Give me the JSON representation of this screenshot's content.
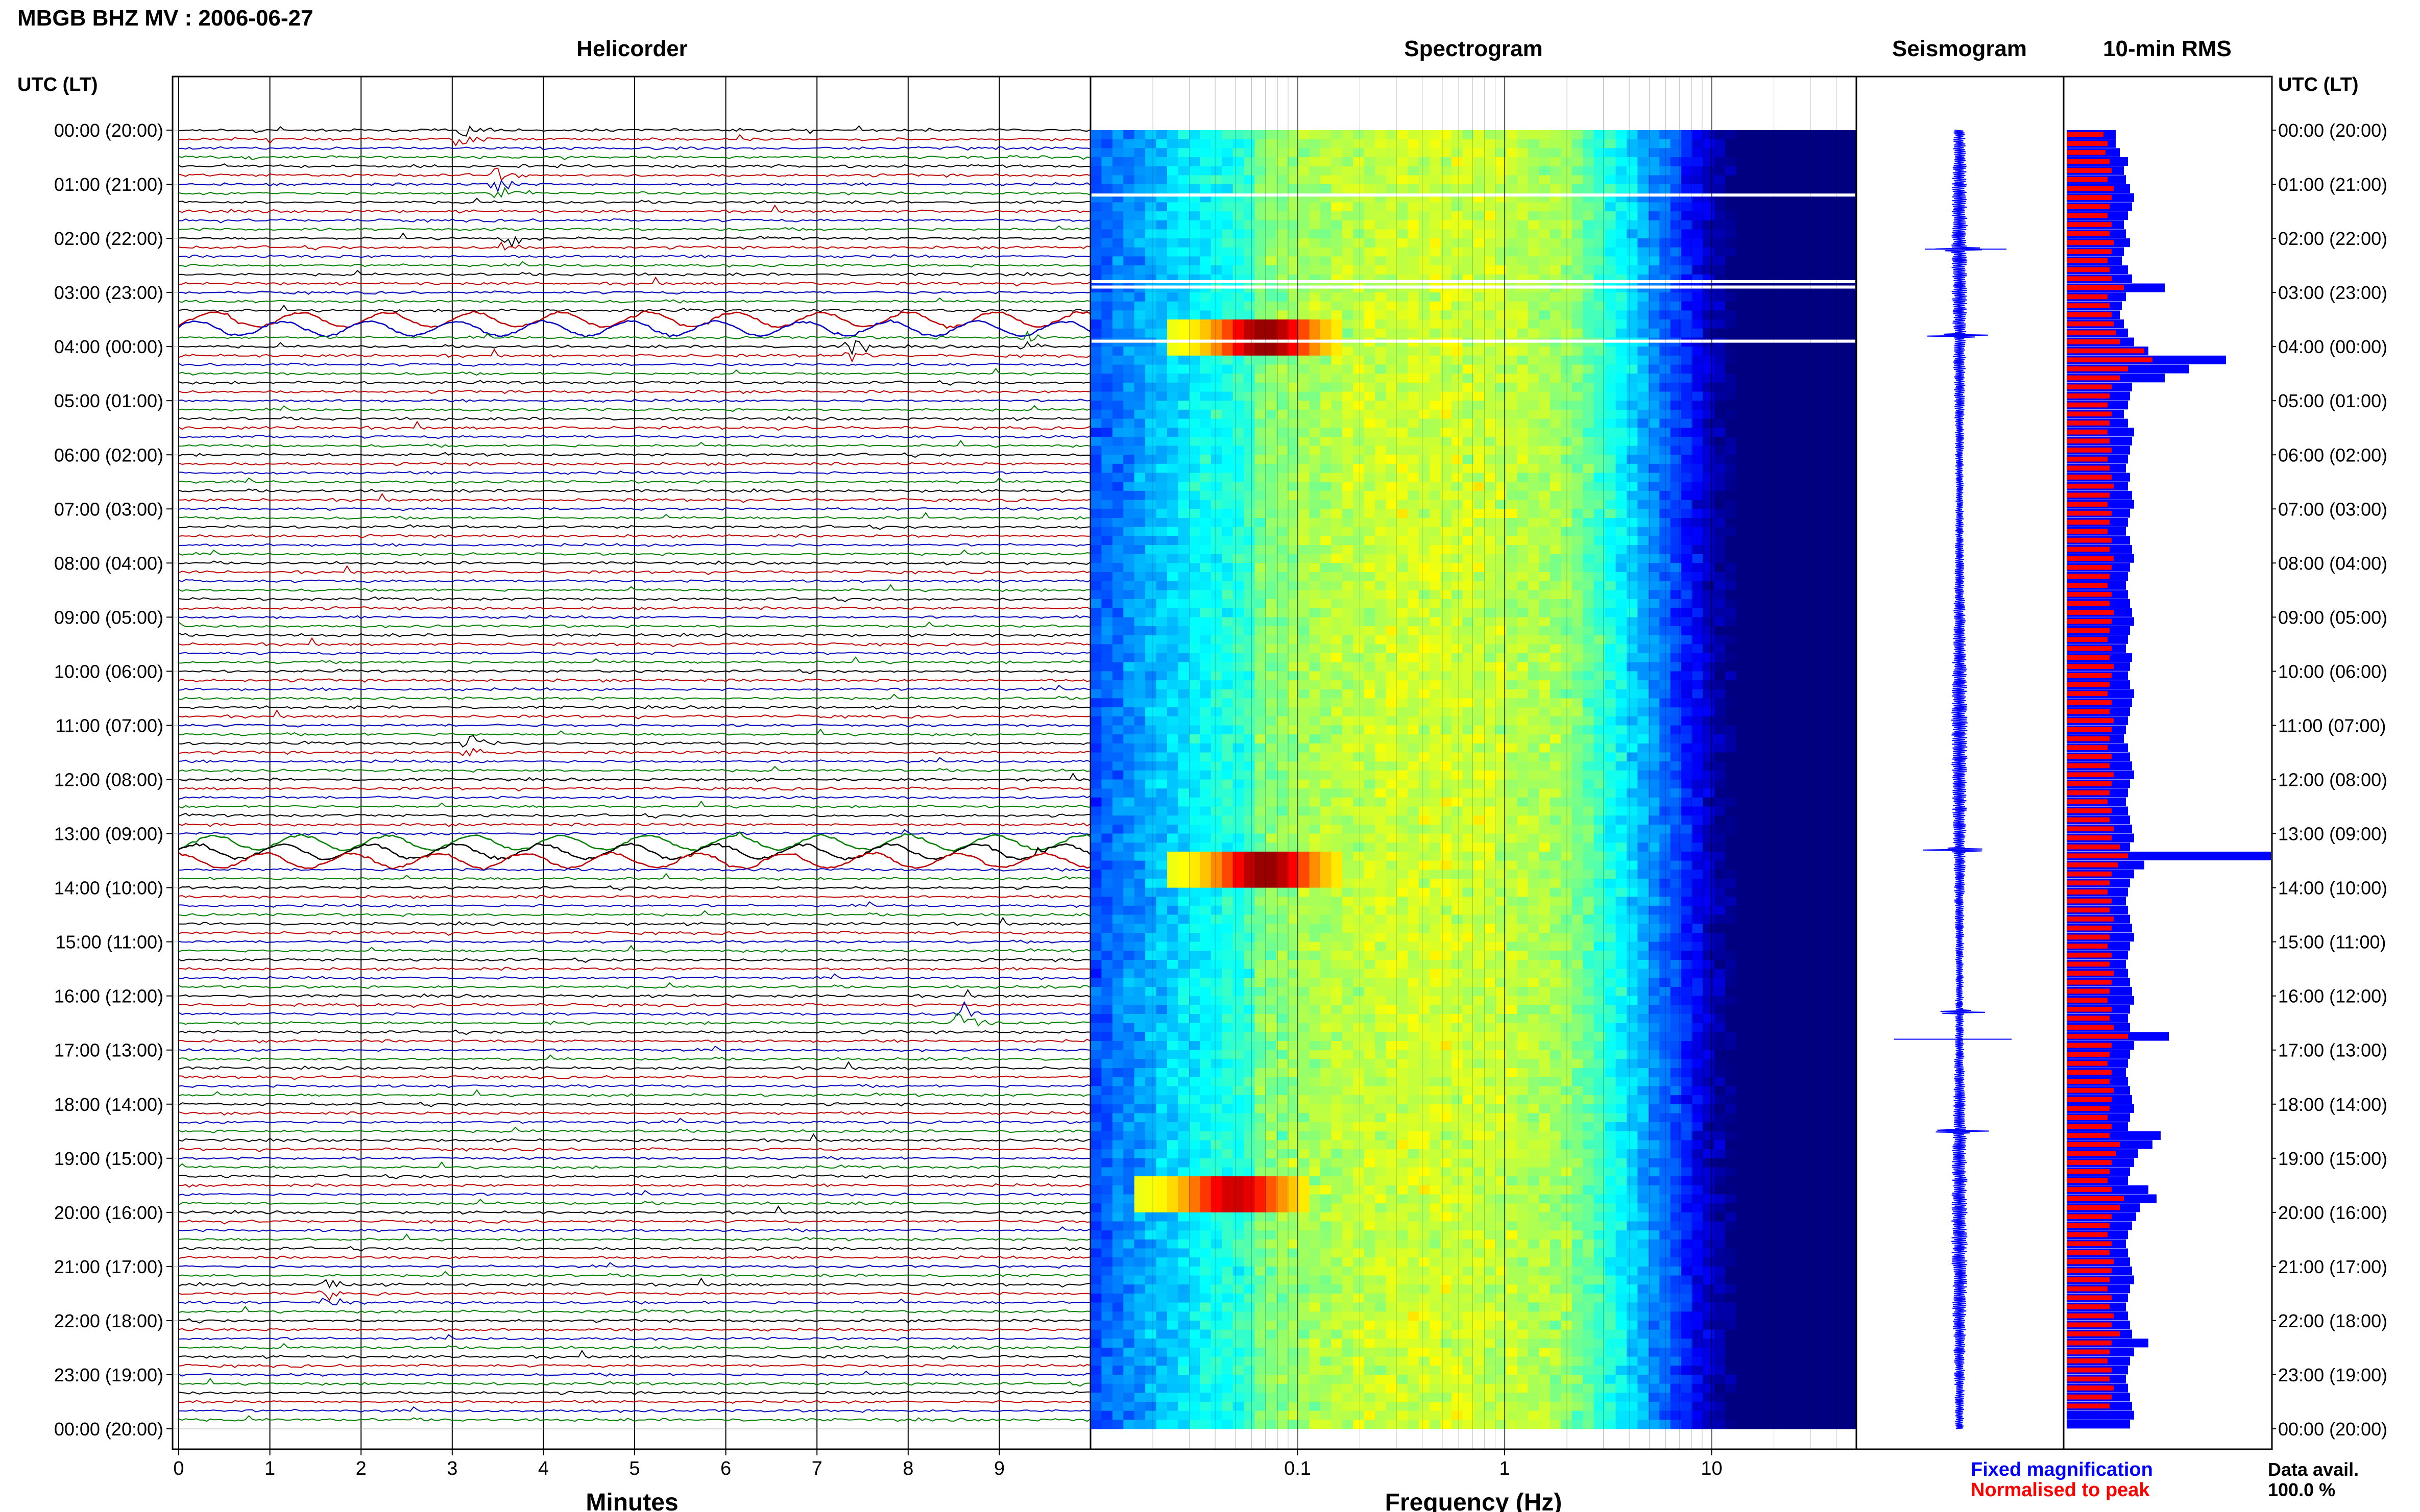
{
  "page_title": "MBGB BHZ MV : 2006-06-27",
  "panels": {
    "helicorder": "Helicorder",
    "spectrogram": "Spectrogram",
    "seismogram": "Seismogram",
    "rms": "10-min RMS"
  },
  "time_axis": {
    "header": "UTC (LT)",
    "labels": [
      "00:00 (20:00)",
      "01:00 (21:00)",
      "02:00 (22:00)",
      "03:00 (23:00)",
      "04:00 (00:00)",
      "05:00 (01:00)",
      "06:00 (02:00)",
      "07:00 (03:00)",
      "08:00 (04:00)",
      "09:00 (05:00)",
      "10:00 (06:00)",
      "11:00 (07:00)",
      "12:00 (08:00)",
      "13:00 (09:00)",
      "14:00 (10:00)",
      "15:00 (11:00)",
      "16:00 (12:00)",
      "17:00 (13:00)",
      "18:00 (14:00)",
      "19:00 (15:00)",
      "20:00 (16:00)",
      "21:00 (17:00)",
      "22:00 (18:00)",
      "23:00 (19:00)",
      "00:00 (20:00)"
    ]
  },
  "x_axes": {
    "minutes": {
      "label": "Minutes",
      "ticks": [
        "0",
        "1",
        "2",
        "3",
        "4",
        "5",
        "6",
        "7",
        "8",
        "9"
      ]
    },
    "frequency": {
      "label": "Frequency (Hz)",
      "ticks": [
        "0.1",
        "1",
        "10"
      ],
      "scale": "log",
      "range_hz": [
        0.01,
        50
      ]
    }
  },
  "legend": {
    "fixed": "Fixed magnification",
    "normalised": "Normalised to peak",
    "data_avail_label": "Data avail.",
    "data_avail_value": "100.0 %"
  },
  "colors": {
    "trace_cycle": [
      "#000000",
      "#c00000",
      "#0000c0",
      "#008000"
    ],
    "rms_fixed": "#0000ff",
    "rms_normalised": "#ff0000",
    "seismogram": "#0000ff",
    "grid": "#000000"
  },
  "chart_data": {
    "type": "heatmap",
    "helicorder": {
      "lines_per_hour": 6,
      "hours": 24,
      "long_period_bands_hours": [
        [
          3.4,
          3.8
        ],
        [
          13.1,
          13.6
        ]
      ],
      "events": [
        {
          "hour": 0.05,
          "minute": 3.1,
          "color": "black"
        },
        {
          "hour": 1.0,
          "minute": 3.5,
          "color": "red"
        },
        {
          "hour": 2.1,
          "minute": 3.6,
          "color": "red"
        },
        {
          "hour": 3.9,
          "minute": 9.3,
          "color": "black"
        },
        {
          "hour": 4.1,
          "minute": 7.4,
          "color": "red"
        },
        {
          "hour": 11.4,
          "minute": 3.2,
          "color": "red"
        },
        {
          "hour": 16.4,
          "minute": 8.6,
          "color": "black"
        },
        {
          "hour": 21.5,
          "minute": 1.6,
          "color": "red"
        }
      ]
    },
    "spectrogram": {
      "peaks": [
        {
          "hour_start": 3.5,
          "hour_end": 4.0,
          "freq_hz": 0.07,
          "strength": 1.0
        },
        {
          "hour_start": 13.3,
          "hour_end": 13.8,
          "freq_hz": 0.07,
          "strength": 1.0
        },
        {
          "hour_start": 19.3,
          "hour_end": 19.9,
          "freq_hz": 0.05,
          "strength": 0.85
        }
      ],
      "gaps_hours": [
        1.2,
        2.8,
        2.9,
        3.9
      ]
    },
    "seismogram": {
      "spikes_hours": [
        2.2,
        3.8,
        13.3,
        16.3,
        18.5
      ]
    },
    "rms_10min": {
      "fixed_relative": [
        0.24,
        0.24,
        0.26,
        0.3,
        0.28,
        0.29,
        0.31,
        0.33,
        0.32,
        0.3,
        0.28,
        0.29,
        0.31,
        0.28,
        0.27,
        0.3,
        0.32,
        0.48,
        0.29,
        0.27,
        0.26,
        0.28,
        0.3,
        0.33,
        0.4,
        0.78,
        0.6,
        0.48,
        0.32,
        0.31,
        0.3,
        0.28,
        0.3,
        0.33,
        0.32,
        0.31,
        0.3,
        0.29,
        0.31,
        0.3,
        0.32,
        0.33,
        0.31,
        0.3,
        0.29,
        0.31,
        0.32,
        0.33,
        0.31,
        0.3,
        0.29,
        0.3,
        0.31,
        0.32,
        0.33,
        0.31,
        0.3,
        0.29,
        0.32,
        0.31,
        0.3,
        0.31,
        0.33,
        0.32,
        0.31,
        0.3,
        0.29,
        0.28,
        0.3,
        0.31,
        0.32,
        0.33,
        0.31,
        0.3,
        0.29,
        0.3,
        0.31,
        0.32,
        0.33,
        0.31,
        1.0,
        0.38,
        0.33,
        0.31,
        0.3,
        0.29,
        0.3,
        0.31,
        0.32,
        0.33,
        0.31,
        0.3,
        0.29,
        0.3,
        0.31,
        0.32,
        0.33,
        0.31,
        0.3,
        0.31,
        0.5,
        0.33,
        0.31,
        0.3,
        0.29,
        0.3,
        0.31,
        0.32,
        0.33,
        0.31,
        0.3,
        0.46,
        0.42,
        0.35,
        0.33,
        0.31,
        0.3,
        0.4,
        0.44,
        0.36,
        0.34,
        0.32,
        0.3,
        0.29,
        0.3,
        0.31,
        0.32,
        0.33,
        0.31,
        0.3,
        0.29,
        0.3,
        0.31,
        0.32,
        0.4,
        0.33,
        0.31,
        0.3,
        0.29,
        0.3,
        0.31,
        0.32,
        0.33,
        0.31
      ],
      "normalised_relative": [
        0.18,
        0.2,
        0.19,
        0.21,
        0.22,
        0.2,
        0.23,
        0.22,
        0.21,
        0.2,
        0.22,
        0.21,
        0.23,
        0.22,
        0.2,
        0.21,
        0.22,
        0.28,
        0.2,
        0.21,
        0.22,
        0.23,
        0.24,
        0.26,
        0.38,
        0.42,
        0.3,
        0.26,
        0.22,
        0.21,
        0.2,
        0.22,
        0.21,
        0.2,
        0.21,
        0.22,
        0.2,
        0.21,
        0.22,
        0.23,
        0.21,
        0.2,
        0.22,
        0.21,
        0.2,
        0.22,
        0.21,
        0.23,
        0.22,
        0.21,
        0.2,
        0.22,
        0.21,
        0.23,
        0.22,
        0.21,
        0.2,
        0.22,
        0.21,
        0.23,
        0.22,
        0.21,
        0.2,
        0.22,
        0.21,
        0.23,
        0.22,
        0.21,
        0.2,
        0.22,
        0.21,
        0.23,
        0.22,
        0.21,
        0.2,
        0.22,
        0.21,
        0.23,
        0.22,
        0.26,
        0.3,
        0.25,
        0.22,
        0.21,
        0.2,
        0.22,
        0.21,
        0.23,
        0.22,
        0.21,
        0.2,
        0.22,
        0.21,
        0.23,
        0.22,
        0.21,
        0.2,
        0.22,
        0.21,
        0.23,
        0.3,
        0.22,
        0.21,
        0.2,
        0.22,
        0.21,
        0.23,
        0.22,
        0.21,
        0.2,
        0.22,
        0.21,
        0.26,
        0.24,
        0.22,
        0.21,
        0.2,
        0.22,
        0.28,
        0.26,
        0.22,
        0.21,
        0.2,
        0.22,
        0.21,
        0.23,
        0.22,
        0.21,
        0.2,
        0.22,
        0.21,
        0.23,
        0.22,
        0.26,
        0.22,
        0.21,
        0.2,
        0.22,
        0.21,
        0.23,
        0.22,
        0.21
      ]
    }
  }
}
